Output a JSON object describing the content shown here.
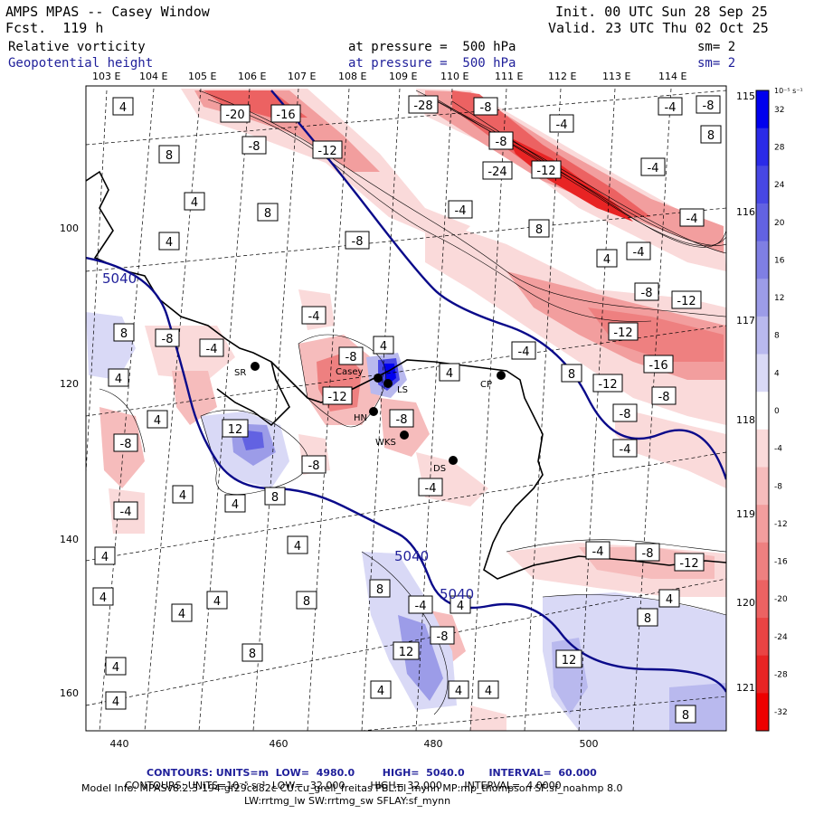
{
  "header": {
    "title": "AMPS MPAS -- Casey Window",
    "fcst": "Fcst.  119 h",
    "init": "Init. 00 UTC Sun 28 Sep 25",
    "valid": "Valid. 23 UTC Thu 02 Oct 25",
    "field1_name": "Relative vorticity",
    "field1_level": "at pressure =  500 hPa",
    "field1_sm": "sm= 2",
    "field2_name": "Geopotential height",
    "field2_level": "at pressure =  500 hPa",
    "field2_sm": "sm= 2",
    "colors": {
      "field2": "#1f1f9a",
      "height_contour": "#0a0a8a"
    }
  },
  "map": {
    "lon_labels_top": [
      "103 E",
      "104 E",
      "105 E",
      "106 E",
      "107 E",
      "108 E",
      "109 E",
      "110 E",
      "111 E",
      "112 E",
      "113 E",
      "114 E"
    ],
    "lon_labels_right": [
      "115 E",
      "116 E",
      "117 E",
      "118 E",
      "119 E",
      "120 E",
      "121 E"
    ],
    "x_ticks": [
      "440",
      "460",
      "480",
      "500"
    ],
    "y_ticks": [
      "100",
      "120",
      "140",
      "160"
    ],
    "height_labels": [
      "5040",
      "5040",
      "5040"
    ],
    "stations": [
      {
        "code": "SR"
      },
      {
        "code": "Casey"
      },
      {
        "code": "LS"
      },
      {
        "code": "HN"
      },
      {
        "code": "WKS"
      },
      {
        "code": "DS"
      },
      {
        "code": "CP"
      }
    ],
    "vort_labels_pos": [
      "4",
      "8",
      "12"
    ],
    "vort_labels_neg": [
      "-4",
      "-8",
      "-12",
      "-16",
      "-20",
      "-24",
      "-28"
    ]
  },
  "colorbar": {
    "unit": "10⁻⁵ s⁻¹",
    "ticks": [
      "32",
      "28",
      "24",
      "20",
      "16",
      "12",
      "8",
      "4",
      "0",
      "-4",
      "-8",
      "-12",
      "-16",
      "-20",
      "-24",
      "-28",
      "-32"
    ],
    "colors_top_to_bottom": [
      "#0000ee",
      "#2a2ae8",
      "#4747e4",
      "#6262e2",
      "#7f7fe4",
      "#9c9ce8",
      "#b9b9ee",
      "#d9d9f6",
      "#ffffff",
      "#fadada",
      "#f6bcbc",
      "#f29e9e",
      "#ee8080",
      "#ec6262",
      "#ea4444",
      "#e82424",
      "#ee0000"
    ]
  },
  "footer": {
    "line1_label": "CONTOURS:",
    "line1_rest": "UNITS=m  LOW=  4980.0        HIGH=  5040.0       INTERVAL=  60.000",
    "line2_label": "CONTOURS:",
    "line2_rest": "UNITS=10⁻⁵ s⁻¹  LOW= -32.000        HIGH= 32.000       INTERVAL=  4.0000",
    "model_info": "Model Info: MPASv8.2.3-194-gf29cd82c CU:cu_grell_freitas PBL:bl_mynn MP:mp_thompson SF:sf_noahmp 8.0",
    "model_info2": "LW:rrtmg_lw SW:rrtmg_sw SFLAY:sf_mynn"
  }
}
